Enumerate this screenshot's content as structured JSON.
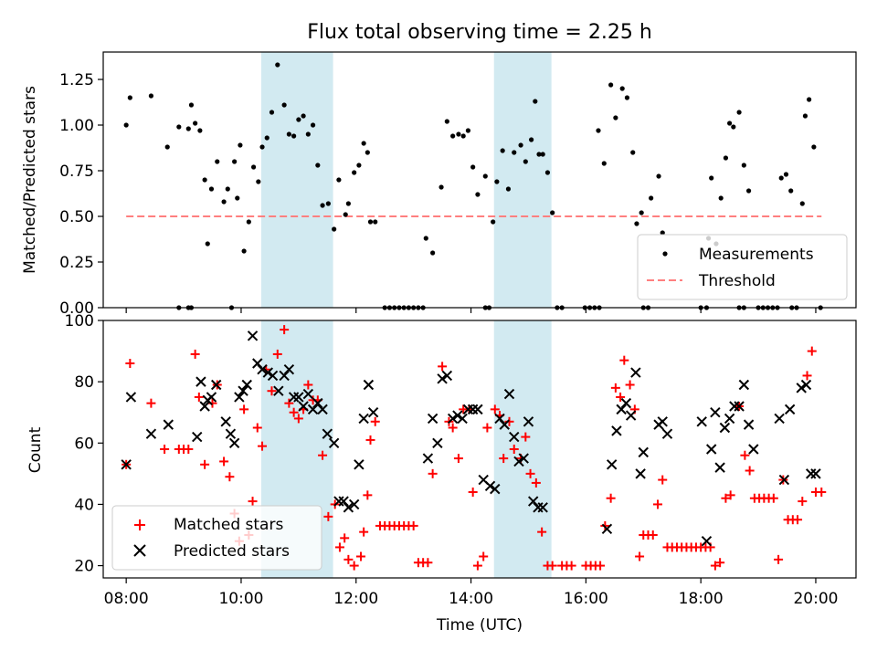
{
  "colors": {
    "measurement": "#000000",
    "threshold": "#ff7f7f",
    "matched": "#ff0000",
    "predicted": "#000000",
    "shade": "#add8e6"
  },
  "chart_data": [
    {
      "type": "scatter",
      "panel": "top",
      "title": "Flux total observing time = 2.25 h",
      "xlabel": "",
      "ylabel": "Matched/Predicted stars",
      "xlim": [
        "07:36",
        "20:42"
      ],
      "ylim": [
        0,
        1.4
      ],
      "yticks": [
        0,
        0.25,
        0.5,
        0.75,
        1.0,
        1.25
      ],
      "yticklabels": [
        "0.00",
        "0.25",
        "0.50",
        "0.75",
        "1.00",
        "1.25"
      ],
      "grid": false,
      "legend": {
        "placement": "lower-right",
        "entries": [
          {
            "label": "Measurements",
            "marker": "dot"
          },
          {
            "label": "Threshold",
            "marker": "dashed-line"
          }
        ]
      },
      "shaded_intervals": [
        [
          "10:21",
          "11:36"
        ],
        [
          "14:24",
          "15:24"
        ]
      ],
      "threshold": {
        "value": 0.5,
        "x_range": [
          "08:00",
          "20:06"
        ]
      },
      "series": [
        {
          "name": "Measurements",
          "x": [
            "08:00",
            "08:04",
            "08:26",
            "08:43",
            "08:55",
            "09:05",
            "09:08",
            "09:12",
            "09:17",
            "09:22",
            "09:25",
            "09:29",
            "09:35",
            "09:42",
            "09:46",
            "09:53",
            "09:56",
            "09:59",
            "10:03",
            "10:08",
            "10:13",
            "10:18",
            "10:22",
            "10:27",
            "10:32",
            "10:38",
            "10:45",
            "10:50",
            "10:55",
            "11:00",
            "11:05",
            "11:10",
            "11:15",
            "11:20",
            "11:25",
            "11:31",
            "11:37",
            "11:42",
            "11:49",
            "11:52",
            "11:58",
            "12:03",
            "12:08",
            "12:12",
            "12:15",
            "12:20",
            "13:13",
            "13:20",
            "13:29",
            "13:35",
            "13:41",
            "13:47",
            "13:52",
            "13:57",
            "14:02",
            "14:07",
            "14:15",
            "14:23",
            "14:27",
            "14:33",
            "14:39",
            "14:45",
            "14:52",
            "14:57",
            "15:03",
            "15:07",
            "15:11",
            "15:15",
            "15:20",
            "15:25",
            "16:13",
            "16:19",
            "16:26",
            "16:31",
            "16:38",
            "16:43",
            "16:49",
            "16:53",
            "16:58",
            "17:08",
            "17:16",
            "17:20",
            "18:08",
            "18:11",
            "18:16",
            "18:21",
            "18:26",
            "18:30",
            "18:34",
            "18:40",
            "18:45",
            "18:50",
            "19:24",
            "19:29",
            "19:34",
            "19:46",
            "19:49",
            "19:53",
            "19:58"
          ],
          "y": [
            1.0,
            1.15,
            1.16,
            0.88,
            0.99,
            0.98,
            1.11,
            1.01,
            0.97,
            0.7,
            0.35,
            0.65,
            0.8,
            0.58,
            0.65,
            0.8,
            0.6,
            0.89,
            0.31,
            0.47,
            0.77,
            0.69,
            0.88,
            0.93,
            1.07,
            1.33,
            1.11,
            0.95,
            0.94,
            1.03,
            1.05,
            0.95,
            1.0,
            0.78,
            0.56,
            0.57,
            0.43,
            0.7,
            0.51,
            0.57,
            0.74,
            0.78,
            0.9,
            0.85,
            0.47,
            0.47,
            0.38,
            0.3,
            0.66,
            1.02,
            0.94,
            0.95,
            0.94,
            0.97,
            0.77,
            0.62,
            0.72,
            0.47,
            0.69,
            0.86,
            0.65,
            0.85,
            0.89,
            0.8,
            0.92,
            1.13,
            0.84,
            0.84,
            0.74,
            0.52,
            0.97,
            0.79,
            1.22,
            1.04,
            1.2,
            1.15,
            0.85,
            0.46,
            0.52,
            0.6,
            0.72,
            0.41,
            0.38,
            0.71,
            0.35,
            0.6,
            0.82,
            1.01,
            0.99,
            1.07,
            0.78,
            0.64,
            0.71,
            0.73,
            0.64,
            0.57,
            1.05,
            1.14,
            0.88
          ]
        },
        {
          "name": "zero-ratio",
          "x": [
            "08:55",
            "09:05",
            "09:08",
            "09:50",
            "12:30",
            "12:35",
            "12:40",
            "12:45",
            "12:50",
            "12:55",
            "13:00",
            "13:05",
            "13:10",
            "14:15",
            "14:19",
            "15:30",
            "15:35",
            "15:59",
            "16:04",
            "16:09",
            "16:14",
            "17:00",
            "17:05",
            "18:00",
            "18:06",
            "18:40",
            "18:45",
            "19:00",
            "19:05",
            "19:10",
            "19:15",
            "19:20",
            "19:35",
            "19:40",
            "20:05"
          ],
          "y": [
            0,
            0,
            0,
            0,
            0,
            0,
            0,
            0,
            0,
            0,
            0,
            0,
            0,
            0,
            0,
            0,
            0,
            0,
            0,
            0,
            0,
            0,
            0,
            0,
            0,
            0,
            0,
            0,
            0,
            0,
            0,
            0,
            0,
            0,
            0
          ]
        }
      ]
    },
    {
      "type": "scatter",
      "panel": "bottom",
      "xlabel": "Time (UTC)",
      "ylabel": "Count",
      "xlim": [
        "07:36",
        "20:42"
      ],
      "ylim": [
        16,
        100
      ],
      "xticks": [
        "08:00",
        "10:00",
        "12:00",
        "14:00",
        "16:00",
        "18:00",
        "20:00"
      ],
      "yticks": [
        20,
        40,
        60,
        80,
        100
      ],
      "yticklabels": [
        "20",
        "40",
        "60",
        "80",
        "100"
      ],
      "grid": false,
      "legend": {
        "placement": "lower-left",
        "entries": [
          {
            "label": "Matched stars",
            "marker": "plus"
          },
          {
            "label": "Predicted stars",
            "marker": "x"
          }
        ]
      },
      "shaded_intervals": [
        [
          "10:21",
          "11:36"
        ],
        [
          "14:24",
          "15:24"
        ]
      ],
      "series": [
        {
          "name": "Matched stars",
          "x": [
            "08:00",
            "08:04",
            "08:26",
            "08:40",
            "08:55",
            "09:00",
            "09:05",
            "09:12",
            "09:16",
            "09:22",
            "09:30",
            "09:35",
            "09:42",
            "09:48",
            "09:53",
            "09:58",
            "10:03",
            "10:08",
            "10:12",
            "10:17",
            "10:22",
            "10:26",
            "10:32",
            "10:38",
            "10:45",
            "10:50",
            "10:55",
            "11:00",
            "11:05",
            "11:10",
            "11:15",
            "11:20",
            "11:25",
            "11:31",
            "11:38",
            "11:43",
            "11:48",
            "11:52",
            "11:58",
            "12:05",
            "12:08",
            "12:12",
            "12:15",
            "12:20",
            "12:25",
            "12:30",
            "12:35",
            "12:40",
            "12:45",
            "12:50",
            "12:55",
            "13:00",
            "13:05",
            "13:10",
            "13:15",
            "13:20",
            "13:30",
            "13:37",
            "13:41",
            "13:47",
            "13:52",
            "13:58",
            "14:02",
            "14:07",
            "14:13",
            "14:17",
            "14:25",
            "14:30",
            "14:34",
            "14:40",
            "14:45",
            "14:52",
            "14:57",
            "15:02",
            "15:08",
            "15:14",
            "15:20",
            "15:25",
            "15:35",
            "15:40",
            "15:45",
            "16:00",
            "16:05",
            "16:10",
            "16:15",
            "16:20",
            "16:26",
            "16:31",
            "16:36",
            "16:40",
            "16:46",
            "16:51",
            "16:56",
            "17:00",
            "17:05",
            "17:10",
            "17:15",
            "17:20",
            "17:25",
            "17:30",
            "17:35",
            "17:40",
            "17:45",
            "17:50",
            "17:55",
            "18:00",
            "18:05",
            "18:10",
            "18:15",
            "18:20",
            "18:26",
            "18:31",
            "18:40",
            "18:46",
            "18:51",
            "18:56",
            "19:01",
            "19:06",
            "19:11",
            "19:16",
            "19:21",
            "19:26",
            "19:31",
            "19:36",
            "19:41",
            "19:46",
            "19:51",
            "19:56",
            "20:00",
            "20:06"
          ],
          "y": [
            53,
            86,
            73,
            58,
            58,
            58,
            58,
            89,
            75,
            53,
            73,
            79,
            54,
            49,
            37,
            28,
            71,
            30,
            41,
            65,
            59,
            84,
            77,
            89,
            97,
            73,
            70,
            68,
            71,
            79,
            74,
            74,
            56,
            36,
            40,
            26,
            29,
            22,
            20,
            23,
            31,
            43,
            61,
            67,
            33,
            33,
            33,
            33,
            33,
            33,
            33,
            33,
            21,
            21,
            21,
            50,
            85,
            67,
            65,
            55,
            71,
            71,
            44,
            20,
            23,
            65,
            71,
            69,
            55,
            67,
            58,
            55,
            62,
            50,
            47,
            31,
            20,
            20,
            20,
            20,
            20,
            20,
            20,
            20,
            20,
            33,
            42,
            78,
            75,
            87,
            79,
            71,
            23,
            30,
            30,
            30,
            40,
            48,
            26,
            26,
            26,
            26,
            26,
            26,
            26,
            26,
            26,
            26,
            20,
            21,
            42,
            43,
            72,
            56,
            51,
            42,
            42,
            42,
            42,
            42,
            22,
            48,
            35,
            35,
            35,
            41,
            82,
            90,
            44,
            44
          ]
        },
        {
          "name": "Predicted stars",
          "x": [
            "08:00",
            "08:05",
            "08:26",
            "08:44",
            "09:14",
            "09:18",
            "09:22",
            "09:25",
            "09:29",
            "09:34",
            "09:44",
            "09:49",
            "09:53",
            "09:58",
            "10:02",
            "10:06",
            "10:12",
            "10:17",
            "10:22",
            "10:28",
            "10:33",
            "10:39",
            "10:45",
            "10:50",
            "10:55",
            "11:00",
            "11:05",
            "11:10",
            "11:15",
            "11:20",
            "11:25",
            "11:30",
            "11:37",
            "11:42",
            "11:47",
            "11:52",
            "11:58",
            "12:03",
            "12:08",
            "12:13",
            "12:18",
            "13:15",
            "13:20",
            "13:25",
            "13:30",
            "13:35",
            "13:41",
            "13:46",
            "13:51",
            "13:57",
            "14:02",
            "14:07",
            "14:13",
            "14:20",
            "14:25",
            "14:30",
            "14:35",
            "14:40",
            "14:45",
            "14:50",
            "14:55",
            "15:00",
            "15:05",
            "15:10",
            "15:15",
            "16:22",
            "16:27",
            "16:32",
            "16:37",
            "16:42",
            "16:47",
            "16:52",
            "16:57",
            "17:00",
            "17:16",
            "17:20",
            "17:25",
            "18:01",
            "18:06",
            "18:11",
            "18:15",
            "18:20",
            "18:25",
            "18:30",
            "18:35",
            "18:40",
            "18:45",
            "18:50",
            "18:55",
            "19:22",
            "19:27",
            "19:33",
            "19:45",
            "19:50",
            "19:55",
            "20:00"
          ],
          "y": [
            53,
            75,
            63,
            66,
            62,
            80,
            72,
            74,
            75,
            79,
            67,
            63,
            60,
            75,
            77,
            79,
            95,
            86,
            84,
            83,
            82,
            77,
            82,
            84,
            75,
            75,
            72,
            76,
            71,
            73,
            71,
            63,
            60,
            41,
            41,
            39,
            40,
            53,
            68,
            79,
            70,
            55,
            68,
            60,
            81,
            82,
            68,
            69,
            68,
            71,
            71,
            71,
            48,
            46,
            45,
            68,
            66,
            76,
            62,
            54,
            55,
            67,
            41,
            39,
            39,
            32,
            53,
            64,
            71,
            73,
            69,
            83,
            50,
            57,
            66,
            67,
            63,
            67,
            28,
            58,
            70,
            52,
            65,
            68,
            72,
            72,
            79,
            66,
            58,
            68,
            48,
            71,
            78,
            79,
            50,
            50
          ]
        }
      ]
    }
  ]
}
